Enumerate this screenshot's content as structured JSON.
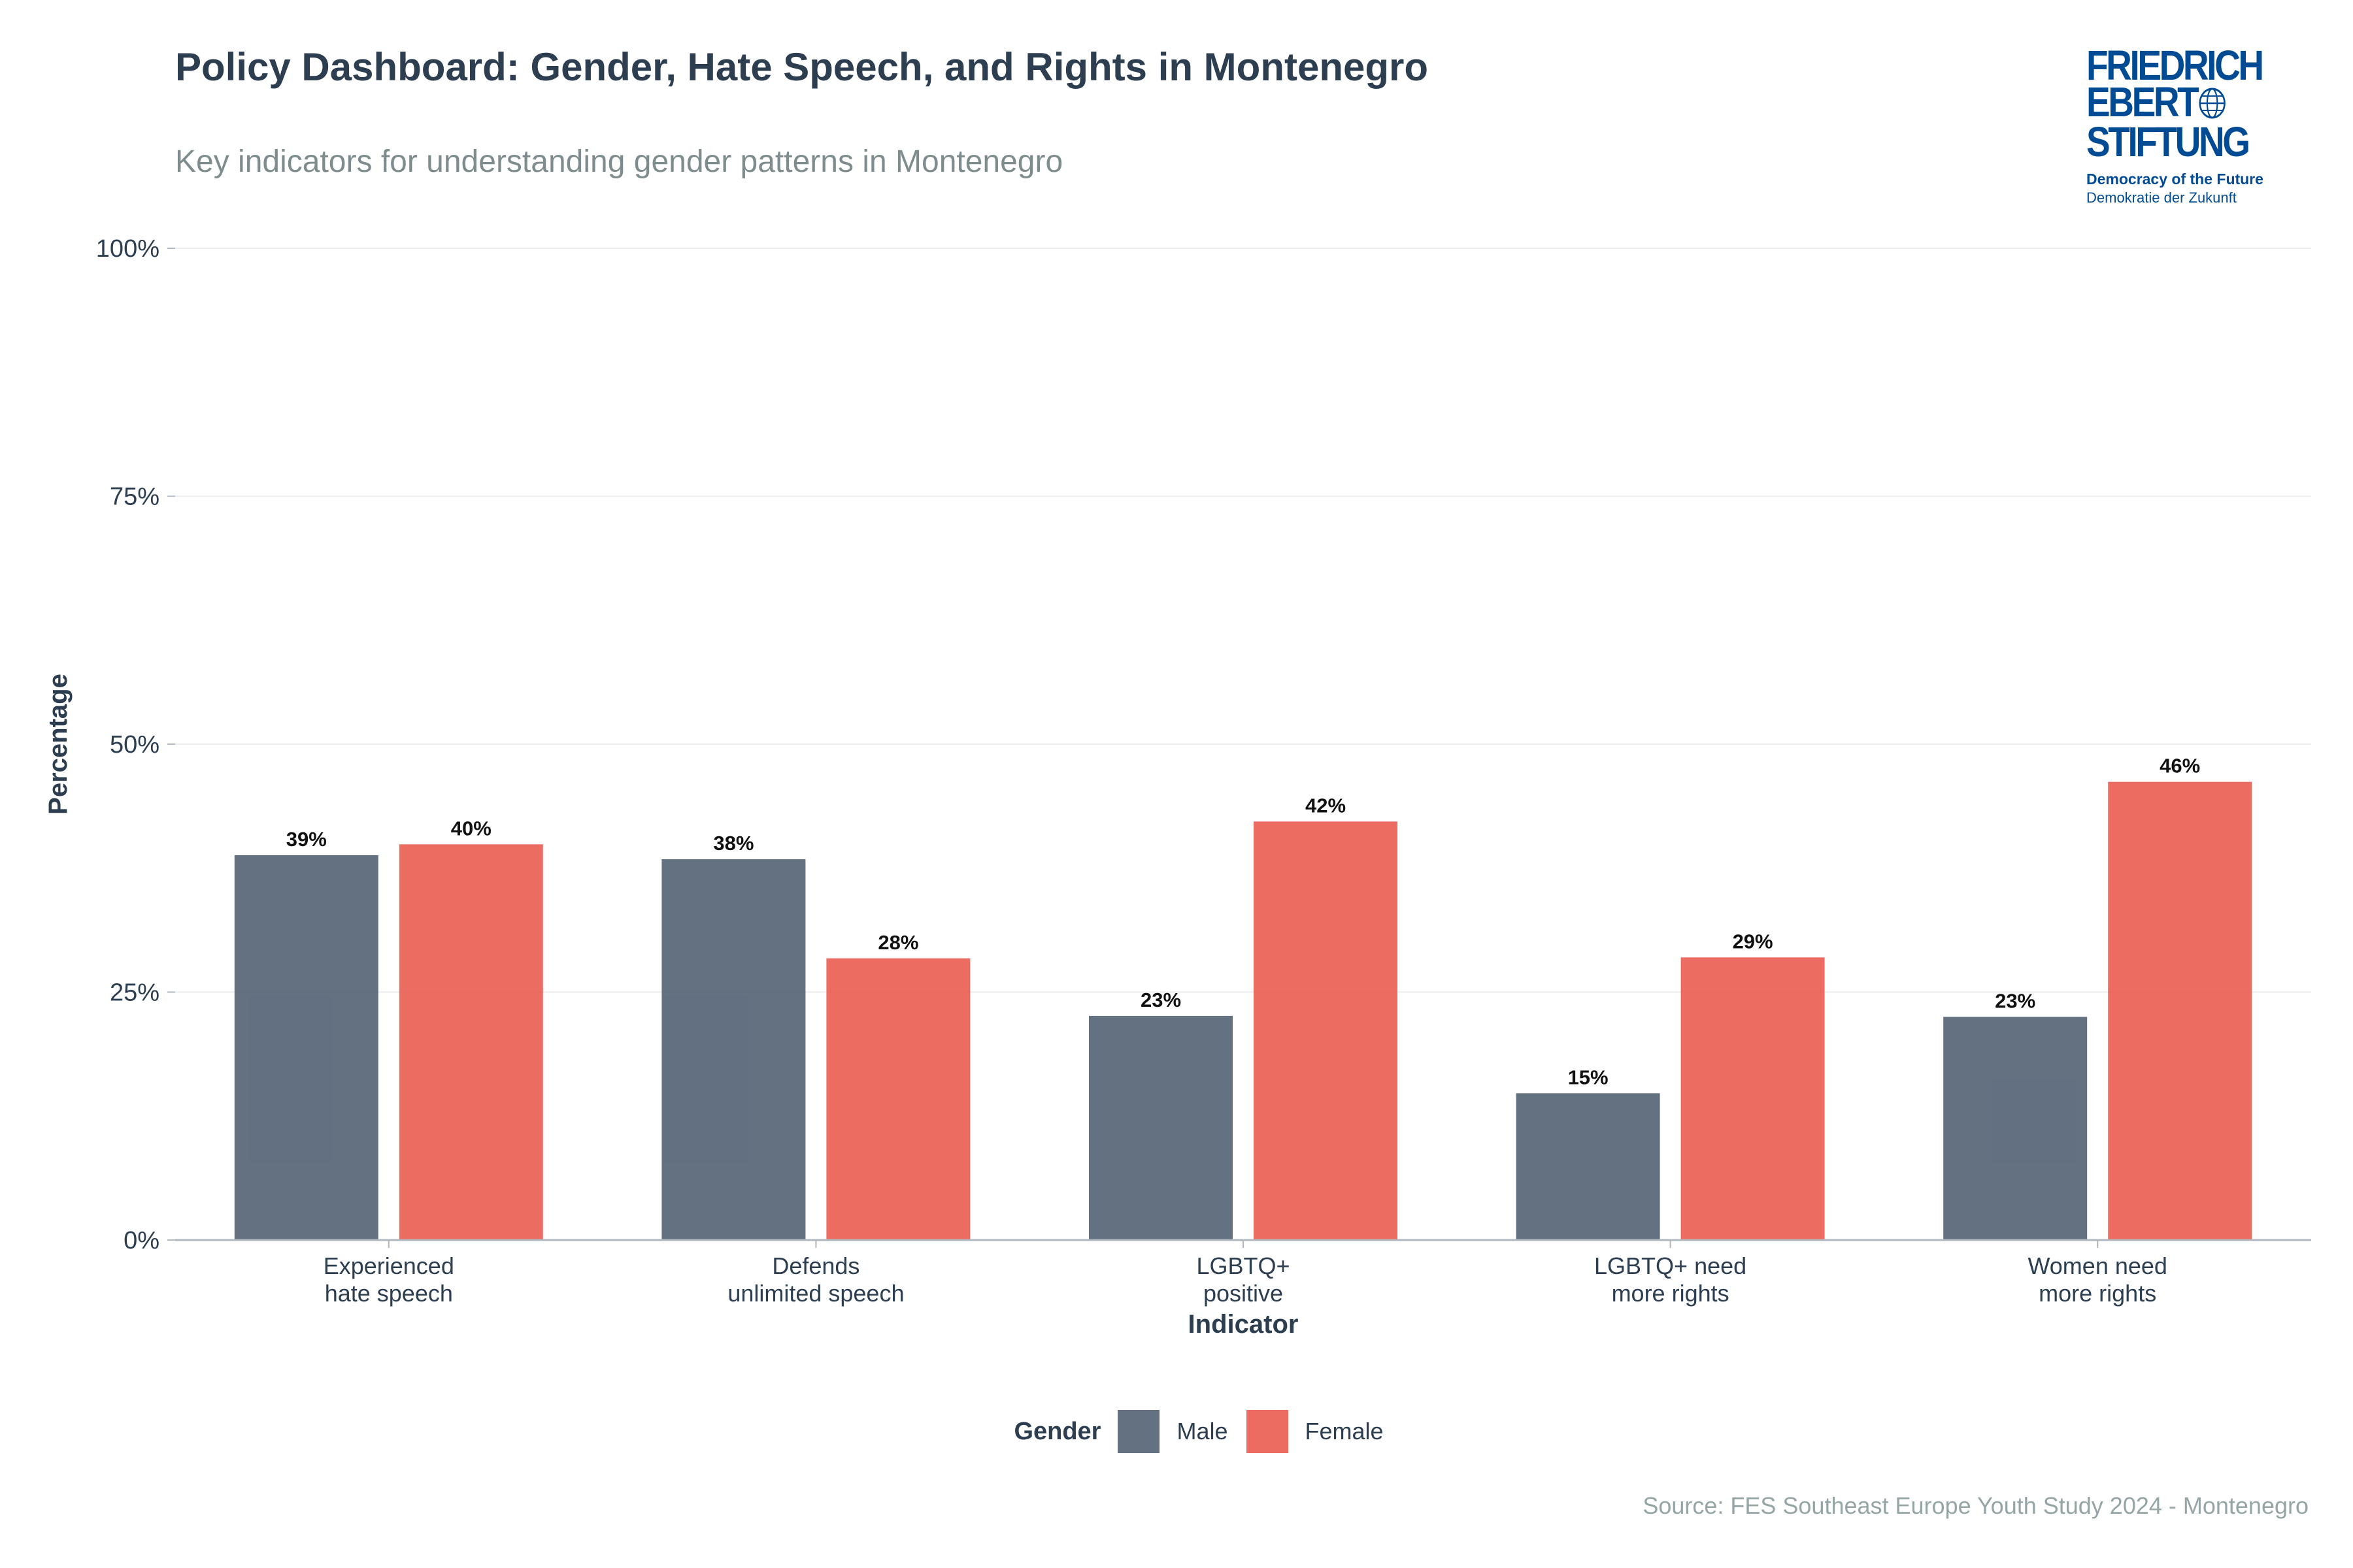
{
  "header": {
    "title": "Policy Dashboard: Gender, Hate Speech, and Rights in Montenegro",
    "subtitle": "Key indicators for understanding gender patterns in Montenegro"
  },
  "logo": {
    "line1": "FRIEDRICH",
    "line2": "EBERT",
    "line3": "STIFTUNG",
    "tagline_en": "Democracy of the Future",
    "tagline_de": "Demokratie der Zukunft",
    "color": "#004b93"
  },
  "footer": {
    "source": "Source: FES Southeast Europe Youth Study 2024 - Montenegro"
  },
  "chart_data": {
    "type": "bar",
    "title": "Policy Dashboard: Gender, Hate Speech, and Rights in Montenegro",
    "xlabel": "Indicator",
    "ylabel": "Percentage",
    "ylim": [
      0,
      100
    ],
    "yticks": [
      0,
      25,
      50,
      75,
      100
    ],
    "ytick_labels": [
      "0%",
      "25%",
      "50%",
      "75%",
      "100%"
    ],
    "grid": true,
    "categories": [
      [
        "Experienced",
        "hate speech"
      ],
      [
        "Defends",
        "unlimited speech"
      ],
      [
        "LGBTQ+",
        "positive"
      ],
      [
        "LGBTQ+ need",
        "more rights"
      ],
      [
        "Women need",
        "more rights"
      ]
    ],
    "series": [
      {
        "name": "Male",
        "color": "#4d5d70",
        "values": [
          38.8,
          38.4,
          22.6,
          14.8,
          22.5
        ],
        "labels": [
          "39%",
          "38%",
          "23%",
          "15%",
          "23%"
        ]
      },
      {
        "name": "Female",
        "color": "#e9584c",
        "values": [
          39.9,
          28.4,
          42.2,
          28.5,
          46.2
        ],
        "labels": [
          "40%",
          "28%",
          "42%",
          "29%",
          "46%"
        ]
      }
    ],
    "legend": {
      "title": "Gender",
      "position": "bottom"
    }
  }
}
